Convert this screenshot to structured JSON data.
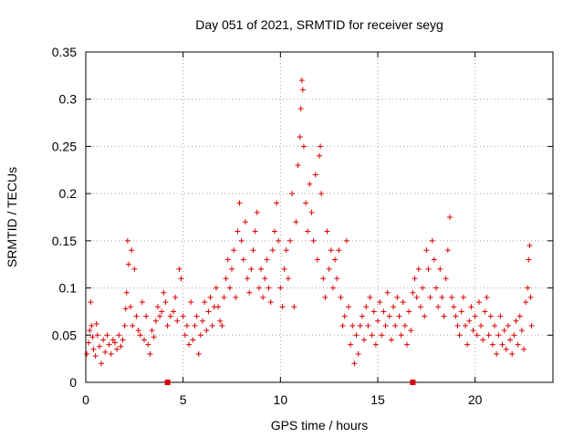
{
  "chart_data": {
    "type": "scatter",
    "title": "Day 051 of 2021, SRMTID for receiver seyg",
    "xlabel": "GPS time / hours",
    "ylabel": "SRMTID / TECUs",
    "xlim": [
      0,
      24
    ],
    "ylim": [
      0,
      0.35
    ],
    "grid": true,
    "xticks": [
      0,
      5,
      10,
      15,
      20
    ],
    "yticks": [
      0,
      0.05,
      0.1,
      0.15,
      0.2,
      0.25,
      0.3,
      0.35
    ],
    "xtick_labels": [
      "0",
      "5",
      "10",
      "15",
      "20"
    ],
    "ytick_labels": [
      "0",
      "0.05",
      "0.1",
      "0.15",
      "0.2",
      "0.25",
      "0.3",
      "0.35"
    ],
    "marker": "plus",
    "color": "#dd0000",
    "axis_markers": [
      4.2,
      16.8
    ],
    "series": [
      {
        "name": "SRMTID",
        "points": [
          [
            0.05,
            0.03
          ],
          [
            0.15,
            0.042
          ],
          [
            0.2,
            0.055
          ],
          [
            0.25,
            0.085
          ],
          [
            0.3,
            0.06
          ],
          [
            0.35,
            0.048
          ],
          [
            0.4,
            0.035
          ],
          [
            0.5,
            0.028
          ],
          [
            0.55,
            0.062
          ],
          [
            0.6,
            0.05
          ],
          [
            0.7,
            0.038
          ],
          [
            0.8,
            0.02
          ],
          [
            0.9,
            0.045
          ],
          [
            1.0,
            0.032
          ],
          [
            1.1,
            0.05
          ],
          [
            1.2,
            0.04
          ],
          [
            1.3,
            0.03
          ],
          [
            1.4,
            0.045
          ],
          [
            1.5,
            0.042
          ],
          [
            1.6,
            0.035
          ],
          [
            1.7,
            0.05
          ],
          [
            1.8,
            0.038
          ],
          [
            1.9,
            0.045
          ],
          [
            2.0,
            0.06
          ],
          [
            2.05,
            0.078
          ],
          [
            2.1,
            0.095
          ],
          [
            2.15,
            0.15
          ],
          [
            2.2,
            0.125
          ],
          [
            2.3,
            0.08
          ],
          [
            2.35,
            0.14
          ],
          [
            2.4,
            0.06
          ],
          [
            2.5,
            0.12
          ],
          [
            2.6,
            0.07
          ],
          [
            2.7,
            0.055
          ],
          [
            2.8,
            0.05
          ],
          [
            2.9,
            0.085
          ],
          [
            3.0,
            0.045
          ],
          [
            3.1,
            0.07
          ],
          [
            3.2,
            0.04
          ],
          [
            3.3,
            0.03
          ],
          [
            3.4,
            0.055
          ],
          [
            3.5,
            0.048
          ],
          [
            3.6,
            0.065
          ],
          [
            3.7,
            0.08
          ],
          [
            3.8,
            0.07
          ],
          [
            3.9,
            0.075
          ],
          [
            4.0,
            0.095
          ],
          [
            4.1,
            0.085
          ],
          [
            4.2,
            0.06
          ],
          [
            4.35,
            0.07
          ],
          [
            4.5,
            0.075
          ],
          [
            4.6,
            0.09
          ],
          [
            4.7,
            0.065
          ],
          [
            4.8,
            0.12
          ],
          [
            4.9,
            0.11
          ],
          [
            5.0,
            0.07
          ],
          [
            5.1,
            0.05
          ],
          [
            5.2,
            0.06
          ],
          [
            5.3,
            0.04
          ],
          [
            5.4,
            0.085
          ],
          [
            5.5,
            0.045
          ],
          [
            5.6,
            0.06
          ],
          [
            5.7,
            0.07
          ],
          [
            5.8,
            0.03
          ],
          [
            5.9,
            0.05
          ],
          [
            6.0,
            0.065
          ],
          [
            6.1,
            0.085
          ],
          [
            6.2,
            0.055
          ],
          [
            6.3,
            0.075
          ],
          [
            6.4,
            0.09
          ],
          [
            6.5,
            0.06
          ],
          [
            6.6,
            0.08
          ],
          [
            6.7,
            0.1
          ],
          [
            6.8,
            0.08
          ],
          [
            6.9,
            0.065
          ],
          [
            7.0,
            0.06
          ],
          [
            7.1,
            0.09
          ],
          [
            7.2,
            0.11
          ],
          [
            7.3,
            0.13
          ],
          [
            7.4,
            0.1
          ],
          [
            7.5,
            0.12
          ],
          [
            7.6,
            0.14
          ],
          [
            7.7,
            0.09
          ],
          [
            7.8,
            0.16
          ],
          [
            7.9,
            0.19
          ],
          [
            8.0,
            0.15
          ],
          [
            8.1,
            0.13
          ],
          [
            8.2,
            0.17
          ],
          [
            8.3,
            0.11
          ],
          [
            8.4,
            0.095
          ],
          [
            8.5,
            0.12
          ],
          [
            8.6,
            0.14
          ],
          [
            8.7,
            0.16
          ],
          [
            8.8,
            0.18
          ],
          [
            8.9,
            0.1
          ],
          [
            9.0,
            0.12
          ],
          [
            9.1,
            0.09
          ],
          [
            9.2,
            0.11
          ],
          [
            9.3,
            0.13
          ],
          [
            9.4,
            0.1
          ],
          [
            9.5,
            0.085
          ],
          [
            9.6,
            0.14
          ],
          [
            9.7,
            0.16
          ],
          [
            9.8,
            0.19
          ],
          [
            9.9,
            0.15
          ],
          [
            10.0,
            0.1
          ],
          [
            10.1,
            0.08
          ],
          [
            10.2,
            0.12
          ],
          [
            10.3,
            0.14
          ],
          [
            10.4,
            0.11
          ],
          [
            10.5,
            0.15
          ],
          [
            10.6,
            0.2
          ],
          [
            10.7,
            0.08
          ],
          [
            10.8,
            0.17
          ],
          [
            10.9,
            0.23
          ],
          [
            11.0,
            0.26
          ],
          [
            11.05,
            0.29
          ],
          [
            11.1,
            0.32
          ],
          [
            11.15,
            0.31
          ],
          [
            11.2,
            0.25
          ],
          [
            11.3,
            0.19
          ],
          [
            11.4,
            0.16
          ],
          [
            11.5,
            0.21
          ],
          [
            11.6,
            0.18
          ],
          [
            11.7,
            0.15
          ],
          [
            11.8,
            0.22
          ],
          [
            11.9,
            0.13
          ],
          [
            12.0,
            0.24
          ],
          [
            12.05,
            0.25
          ],
          [
            12.1,
            0.2
          ],
          [
            12.2,
            0.11
          ],
          [
            12.3,
            0.09
          ],
          [
            12.4,
            0.16
          ],
          [
            12.5,
            0.12
          ],
          [
            12.6,
            0.14
          ],
          [
            12.7,
            0.1
          ],
          [
            12.8,
            0.13
          ],
          [
            12.9,
            0.11
          ],
          [
            13.0,
            0.14
          ],
          [
            13.1,
            0.09
          ],
          [
            13.2,
            0.06
          ],
          [
            13.3,
            0.07
          ],
          [
            13.4,
            0.15
          ],
          [
            13.5,
            0.08
          ],
          [
            13.6,
            0.04
          ],
          [
            13.7,
            0.06
          ],
          [
            13.8,
            0.02
          ],
          [
            13.9,
            0.05
          ],
          [
            14.0,
            0.03
          ],
          [
            14.1,
            0.06
          ],
          [
            14.2,
            0.07
          ],
          [
            14.3,
            0.045
          ],
          [
            14.4,
            0.08
          ],
          [
            14.5,
            0.06
          ],
          [
            14.6,
            0.09
          ],
          [
            14.7,
            0.05
          ],
          [
            14.8,
            0.075
          ],
          [
            14.9,
            0.04
          ],
          [
            15.0,
            0.065
          ],
          [
            15.1,
            0.085
          ],
          [
            15.2,
            0.05
          ],
          [
            15.3,
            0.075
          ],
          [
            15.4,
            0.06
          ],
          [
            15.5,
            0.095
          ],
          [
            15.6,
            0.07
          ],
          [
            15.7,
            0.045
          ],
          [
            15.8,
            0.08
          ],
          [
            15.9,
            0.06
          ],
          [
            16.0,
            0.09
          ],
          [
            16.1,
            0.07
          ],
          [
            16.2,
            0.05
          ],
          [
            16.3,
            0.085
          ],
          [
            16.4,
            0.06
          ],
          [
            16.5,
            0.04
          ],
          [
            16.6,
            0.075
          ],
          [
            16.7,
            0.055
          ],
          [
            16.8,
            0.095
          ],
          [
            16.9,
            0.11
          ],
          [
            17.0,
            0.09
          ],
          [
            17.1,
            0.12
          ],
          [
            17.2,
            0.08
          ],
          [
            17.3,
            0.1
          ],
          [
            17.4,
            0.07
          ],
          [
            17.5,
            0.14
          ],
          [
            17.6,
            0.12
          ],
          [
            17.7,
            0.09
          ],
          [
            17.8,
            0.15
          ],
          [
            17.9,
            0.13
          ],
          [
            18.0,
            0.1
          ],
          [
            18.1,
            0.08
          ],
          [
            18.2,
            0.12
          ],
          [
            18.3,
            0.09
          ],
          [
            18.4,
            0.07
          ],
          [
            18.5,
            0.11
          ],
          [
            18.6,
            0.14
          ],
          [
            18.7,
            0.175
          ],
          [
            18.8,
            0.09
          ],
          [
            18.9,
            0.08
          ],
          [
            19.0,
            0.07
          ],
          [
            19.1,
            0.06
          ],
          [
            19.2,
            0.05
          ],
          [
            19.3,
            0.075
          ],
          [
            19.4,
            0.09
          ],
          [
            19.5,
            0.06
          ],
          [
            19.6,
            0.04
          ],
          [
            19.7,
            0.065
          ],
          [
            19.8,
            0.08
          ],
          [
            19.9,
            0.055
          ],
          [
            20.0,
            0.07
          ],
          [
            20.1,
            0.05
          ],
          [
            20.2,
            0.085
          ],
          [
            20.3,
            0.06
          ],
          [
            20.4,
            0.045
          ],
          [
            20.5,
            0.075
          ],
          [
            20.6,
            0.09
          ],
          [
            20.7,
            0.05
          ],
          [
            20.8,
            0.07
          ],
          [
            20.9,
            0.04
          ],
          [
            21.0,
            0.06
          ],
          [
            21.1,
            0.03
          ],
          [
            21.2,
            0.05
          ],
          [
            21.3,
            0.07
          ],
          [
            21.4,
            0.04
          ],
          [
            21.5,
            0.055
          ],
          [
            21.6,
            0.035
          ],
          [
            21.7,
            0.06
          ],
          [
            21.8,
            0.045
          ],
          [
            21.9,
            0.03
          ],
          [
            22.0,
            0.05
          ],
          [
            22.1,
            0.065
          ],
          [
            22.2,
            0.04
          ],
          [
            22.3,
            0.07
          ],
          [
            22.4,
            0.055
          ],
          [
            22.5,
            0.035
          ],
          [
            22.6,
            0.085
          ],
          [
            22.7,
            0.1
          ],
          [
            22.75,
            0.13
          ],
          [
            22.8,
            0.145
          ],
          [
            22.85,
            0.09
          ],
          [
            22.9,
            0.06
          ]
        ]
      }
    ]
  }
}
